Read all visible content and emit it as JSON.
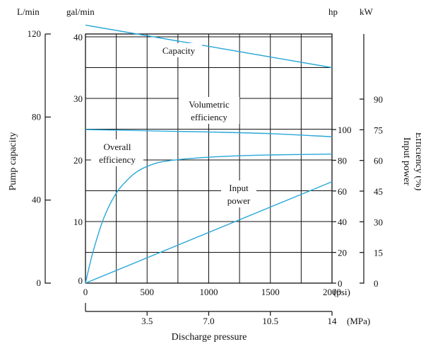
{
  "chart_data": {
    "type": "line",
    "xlabel": "Discharge pressure",
    "x_axes": {
      "psi": {
        "unit": "(psi)",
        "ticks": [
          "0",
          "500",
          "1000",
          "1500",
          "2000"
        ],
        "values": [
          0,
          500,
          1000,
          1500,
          2000
        ],
        "range": [
          0,
          2000
        ]
      },
      "mpa": {
        "unit": "(MPa)",
        "ticks": [
          "3.5",
          "7.0",
          "10.5",
          "14"
        ],
        "values": [
          3.5,
          7.0,
          10.5,
          14
        ],
        "range": [
          0,
          14
        ]
      }
    },
    "y_axes": {
      "lmin": {
        "unit": "L/min",
        "ticks": [
          "0",
          "40",
          "80",
          "120"
        ],
        "values": [
          0,
          40,
          80,
          120
        ]
      },
      "galmin": {
        "unit": "gal/min",
        "ticks": [
          "0",
          "10",
          "20",
          "30",
          "40"
        ],
        "values": [
          0,
          10,
          20,
          30,
          40
        ],
        "range": [
          0,
          40
        ]
      },
      "hp": {
        "unit": "hp",
        "ticks": [
          "0",
          "20",
          "40",
          "60",
          "80",
          "100"
        ],
        "values": [
          0,
          20,
          40,
          60,
          80,
          100
        ]
      },
      "kw": {
        "unit": "kW",
        "ticks": [
          "0",
          "15",
          "30",
          "45",
          "60",
          "75",
          "90"
        ],
        "values": [
          0,
          15,
          30,
          45,
          60,
          75,
          90
        ]
      }
    },
    "axis_titles": {
      "left": "Pump capacity",
      "right_a": "Input power",
      "right_b": "Efficiency (%)",
      "bottom": "Discharge pressure"
    },
    "series": [
      {
        "name": "Capacity",
        "axis": "gal/min",
        "x": [
          0,
          2000
        ],
        "y": [
          41.9,
          35.0
        ]
      },
      {
        "name": "Volumetric efficiency",
        "axis": "Efficiency (%)",
        "x": [
          0,
          500,
          1000,
          1500,
          2000
        ],
        "y": [
          75.0,
          74.4,
          73.8,
          73.0,
          71.5
        ]
      },
      {
        "name": "Overall efficiency",
        "axis": "Efficiency (%)",
        "x": [
          0,
          60,
          150,
          250,
          350,
          420,
          500,
          600,
          750,
          1000,
          1250,
          1500,
          2000
        ],
        "y": [
          0,
          15,
          32,
          44,
          51,
          54.5,
          57,
          59,
          60.3,
          61.5,
          62.2,
          62.6,
          63.0
        ]
      },
      {
        "name": "Input power",
        "axis": "hp",
        "x": [
          0,
          2000
        ],
        "y": [
          0,
          66
        ]
      }
    ],
    "annotations": [
      {
        "id": "capacity",
        "lines": [
          "Capacity"
        ]
      },
      {
        "id": "volumetric",
        "lines": [
          "Volumetric",
          "efficiency"
        ]
      },
      {
        "id": "overall",
        "lines": [
          "Overall",
          "efficiency"
        ]
      },
      {
        "id": "input",
        "lines": [
          "Input",
          "power"
        ]
      }
    ],
    "grid": true,
    "legend": "none"
  }
}
